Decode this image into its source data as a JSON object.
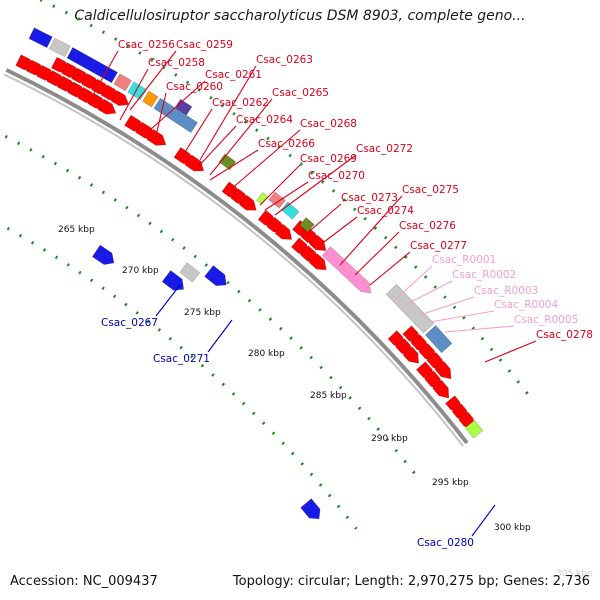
{
  "title": "Caldicellulosiruptor saccharolyticus DSM 8903, complete geno...",
  "footer": {
    "accession": "Accession: NC_009437",
    "summary": "Topology: circular; Length: 2,970,275 bp; Genes: 2,736"
  },
  "colors": {
    "gene_label_red": "#e0001b",
    "gene_label_blue": "#0000bb",
    "rna_label_pink": "#f4a0c8",
    "cds_red": "#ff0000",
    "backbone_grey": "#8c8c8c",
    "tick_green": "#1a8a1a",
    "block_blue": "#1a1ae6",
    "block_grey": "#c8c8c8",
    "block_lightblue": "#5b8ec4",
    "block_salmon": "#f08080",
    "block_cyan": "#33e0e0",
    "block_orange": "#ff9900",
    "block_olive": "#6b8e23",
    "block_pink": "#ff8fcf",
    "block_lime": "#aaff44"
  },
  "scale_labels": [
    "265 kbp",
    "270 kbp",
    "275 kbp",
    "280 kbp",
    "285 kbp",
    "290 kbp",
    "295 kbp",
    "300 kbp",
    "305 kbp"
  ],
  "gene_labels": [
    {
      "text": "Csac_0256",
      "kind": "top"
    },
    {
      "text": "Csac_0259",
      "kind": "top"
    },
    {
      "text": "Csac_0258",
      "kind": "top"
    },
    {
      "text": "Csac_0261",
      "kind": "top"
    },
    {
      "text": "Csac_0263",
      "kind": "top"
    },
    {
      "text": "Csac_0260",
      "kind": "top"
    },
    {
      "text": "Csac_0262",
      "kind": "top"
    },
    {
      "text": "Csac_0265",
      "kind": "top"
    },
    {
      "text": "Csac_0264",
      "kind": "top"
    },
    {
      "text": "Csac_0268",
      "kind": "top"
    },
    {
      "text": "Csac_0266",
      "kind": "top"
    },
    {
      "text": "Csac_0269",
      "kind": "top"
    },
    {
      "text": "Csac_0272",
      "kind": "top"
    },
    {
      "text": "Csac_0270",
      "kind": "top"
    },
    {
      "text": "Csac_0275",
      "kind": "top"
    },
    {
      "text": "Csac_0273",
      "kind": "top"
    },
    {
      "text": "Csac_0274",
      "kind": "top"
    },
    {
      "text": "Csac_0276",
      "kind": "top"
    },
    {
      "text": "Csac_0277",
      "kind": "top"
    },
    {
      "text": "Csac_R0001",
      "kind": "rna"
    },
    {
      "text": "Csac_R0002",
      "kind": "rna"
    },
    {
      "text": "Csac_R0003",
      "kind": "rna"
    },
    {
      "text": "Csac_R0004",
      "kind": "rna"
    },
    {
      "text": "Csac_R0005",
      "kind": "rna"
    },
    {
      "text": "Csac_0278",
      "kind": "top"
    },
    {
      "text": "Csac_0267",
      "kind": "bottom"
    },
    {
      "text": "Csac_0271",
      "kind": "bottom"
    },
    {
      "text": "Csac_0280",
      "kind": "bottom"
    }
  ]
}
